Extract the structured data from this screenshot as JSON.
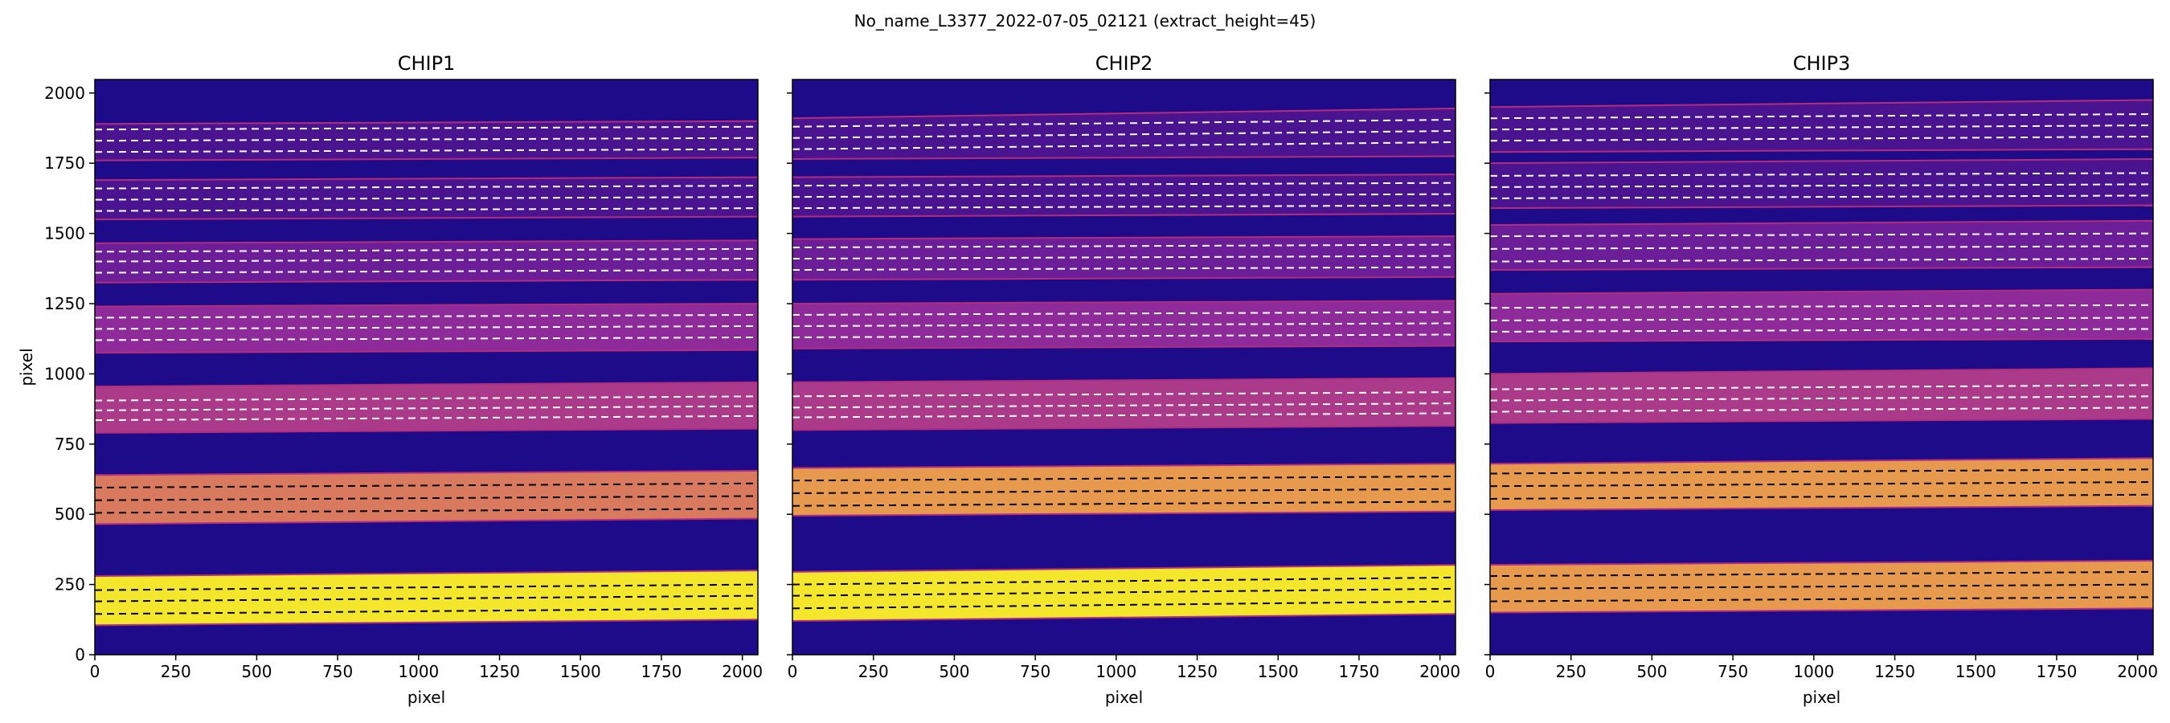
{
  "figure": {
    "suptitle": "No_name_L3377_2022-07-05_02121  (extract_height=45)"
  },
  "colors": {
    "background": "#1e0b8a",
    "order_colors": [
      "#f4e62a",
      "#e7994e",
      "#d97a5e",
      "#ab3a8a",
      "#8f2a9a",
      "#6c1d98",
      "#4a1390"
    ],
    "trace_on_bright": "#000000",
    "trace_on_dark": "#ffffff",
    "edge_line": "#b32d7a"
  },
  "chart_data": [
    {
      "type": "heatmap",
      "title": "CHIP1",
      "xlabel": "pixel",
      "ylabel": "pixel",
      "xlim": [
        0,
        2048
      ],
      "ylim": [
        0,
        2048
      ],
      "xticks": [
        0,
        250,
        500,
        750,
        1000,
        1250,
        1500,
        1750,
        2000
      ],
      "yticks": [
        0,
        250,
        500,
        750,
        1000,
        1250,
        1500,
        1750,
        2000
      ],
      "bands": [
        {
          "y_bottom_left": 105,
          "y_bottom_right": 125,
          "y_top_left": 280,
          "y_top_right": 300,
          "color_index": 0,
          "traces_left": [
            145,
            190,
            230
          ],
          "traces_right": [
            165,
            210,
            250
          ],
          "trace_style": "dark"
        },
        {
          "y_bottom_left": 465,
          "y_bottom_right": 485,
          "y_top_left": 640,
          "y_top_right": 655,
          "color_index": 2,
          "traces_left": [
            505,
            550,
            595
          ],
          "traces_right": [
            520,
            565,
            610
          ],
          "trace_style": "dark"
        },
        {
          "y_bottom_left": 790,
          "y_bottom_right": 805,
          "y_top_left": 955,
          "y_top_right": 970,
          "color_index": 3,
          "traces_left": [
            835,
            870,
            905
          ],
          "traces_right": [
            850,
            885,
            920
          ],
          "trace_style": "light"
        },
        {
          "y_bottom_left": 1075,
          "y_bottom_right": 1085,
          "y_top_left": 1240,
          "y_top_right": 1250,
          "color_index": 4,
          "traces_left": [
            1120,
            1160,
            1200
          ],
          "traces_right": [
            1130,
            1170,
            1210
          ],
          "trace_style": "light"
        },
        {
          "y_bottom_left": 1325,
          "y_bottom_right": 1335,
          "y_top_left": 1465,
          "y_top_right": 1475,
          "color_index": 5,
          "traces_left": [
            1360,
            1400,
            1435
          ],
          "traces_right": [
            1370,
            1410,
            1445
          ],
          "trace_style": "light"
        },
        {
          "y_bottom_left": 1550,
          "y_bottom_right": 1560,
          "y_top_left": 1690,
          "y_top_right": 1700,
          "color_index": 6,
          "traces_left": [
            1580,
            1620,
            1660
          ],
          "traces_right": [
            1590,
            1630,
            1670
          ],
          "trace_style": "light"
        },
        {
          "y_bottom_left": 1760,
          "y_bottom_right": 1770,
          "y_top_left": 1890,
          "y_top_right": 1900,
          "color_index": 6,
          "traces_left": [
            1790,
            1830,
            1870
          ],
          "traces_right": [
            1800,
            1840,
            1880
          ],
          "trace_style": "light"
        }
      ]
    },
    {
      "type": "heatmap",
      "title": "CHIP2",
      "xlabel": "pixel",
      "ylabel": "",
      "xlim": [
        0,
        2048
      ],
      "ylim": [
        0,
        2048
      ],
      "xticks": [
        0,
        250,
        500,
        750,
        1000,
        1250,
        1500,
        1750,
        2000
      ],
      "yticks": [
        0,
        250,
        500,
        750,
        1000,
        1250,
        1500,
        1750,
        2000
      ],
      "bands": [
        {
          "y_bottom_left": 120,
          "y_bottom_right": 145,
          "y_top_left": 295,
          "y_top_right": 320,
          "color_index": 0,
          "traces_left": [
            165,
            210,
            250
          ],
          "traces_right": [
            190,
            235,
            275
          ],
          "trace_style": "dark"
        },
        {
          "y_bottom_left": 495,
          "y_bottom_right": 510,
          "y_top_left": 665,
          "y_top_right": 680,
          "color_index": 1,
          "traces_left": [
            530,
            575,
            620
          ],
          "traces_right": [
            545,
            590,
            635
          ],
          "trace_style": "dark"
        },
        {
          "y_bottom_left": 800,
          "y_bottom_right": 815,
          "y_top_left": 970,
          "y_top_right": 985,
          "color_index": 3,
          "traces_left": [
            845,
            880,
            920
          ],
          "traces_right": [
            860,
            895,
            935
          ],
          "trace_style": "light"
        },
        {
          "y_bottom_left": 1090,
          "y_bottom_right": 1100,
          "y_top_left": 1250,
          "y_top_right": 1260,
          "color_index": 4,
          "traces_left": [
            1130,
            1170,
            1210
          ],
          "traces_right": [
            1140,
            1180,
            1220
          ],
          "trace_style": "light"
        },
        {
          "y_bottom_left": 1335,
          "y_bottom_right": 1345,
          "y_top_left": 1480,
          "y_top_right": 1490,
          "color_index": 5,
          "traces_left": [
            1370,
            1410,
            1450
          ],
          "traces_right": [
            1380,
            1420,
            1460
          ],
          "trace_style": "light"
        },
        {
          "y_bottom_left": 1560,
          "y_bottom_right": 1570,
          "y_top_left": 1700,
          "y_top_right": 1710,
          "color_index": 6,
          "traces_left": [
            1590,
            1630,
            1670
          ],
          "traces_right": [
            1600,
            1640,
            1680
          ],
          "trace_style": "light"
        },
        {
          "y_bottom_left": 1765,
          "y_bottom_right": 1775,
          "y_top_left": 1910,
          "y_top_right": 1945,
          "color_index": 6,
          "traces_left": [
            1800,
            1840,
            1880
          ],
          "traces_right": [
            1825,
            1865,
            1905
          ],
          "trace_style": "light"
        }
      ]
    },
    {
      "type": "heatmap",
      "title": "CHIP3",
      "xlabel": "pixel",
      "ylabel": "",
      "xlim": [
        0,
        2048
      ],
      "ylim": [
        0,
        2048
      ],
      "xticks": [
        0,
        250,
        500,
        750,
        1000,
        1250,
        1500,
        1750,
        2000
      ],
      "yticks": [
        0,
        250,
        500,
        750,
        1000,
        1250,
        1500,
        1750,
        2000
      ],
      "bands": [
        {
          "y_bottom_left": 150,
          "y_bottom_right": 165,
          "y_top_left": 320,
          "y_top_right": 335,
          "color_index": 1,
          "traces_left": [
            190,
            235,
            280
          ],
          "traces_right": [
            205,
            250,
            295
          ],
          "trace_style": "dark"
        },
        {
          "y_bottom_left": 515,
          "y_bottom_right": 530,
          "y_top_left": 680,
          "y_top_right": 700,
          "color_index": 1,
          "traces_left": [
            555,
            600,
            645
          ],
          "traces_right": [
            570,
            615,
            660
          ],
          "trace_style": "dark"
        },
        {
          "y_bottom_left": 825,
          "y_bottom_right": 840,
          "y_top_left": 1000,
          "y_top_right": 1020,
          "color_index": 3,
          "traces_left": [
            865,
            905,
            945
          ],
          "traces_right": [
            880,
            920,
            960
          ],
          "trace_style": "light"
        },
        {
          "y_bottom_left": 1115,
          "y_bottom_right": 1125,
          "y_top_left": 1285,
          "y_top_right": 1300,
          "color_index": 4,
          "traces_left": [
            1150,
            1190,
            1235
          ],
          "traces_right": [
            1160,
            1200,
            1245
          ],
          "trace_style": "light"
        },
        {
          "y_bottom_left": 1370,
          "y_bottom_right": 1380,
          "y_top_left": 1530,
          "y_top_right": 1545,
          "color_index": 5,
          "traces_left": [
            1400,
            1445,
            1490
          ],
          "traces_right": [
            1410,
            1455,
            1500
          ],
          "trace_style": "light"
        },
        {
          "y_bottom_left": 1590,
          "y_bottom_right": 1600,
          "y_top_left": 1750,
          "y_top_right": 1765,
          "color_index": 6,
          "traces_left": [
            1625,
            1665,
            1705
          ],
          "traces_right": [
            1635,
            1675,
            1715
          ],
          "trace_style": "light"
        },
        {
          "y_bottom_left": 1790,
          "y_bottom_right": 1800,
          "y_top_left": 1950,
          "y_top_right": 1975,
          "color_index": 6,
          "traces_left": [
            1830,
            1870,
            1910
          ],
          "traces_right": [
            1845,
            1885,
            1925
          ],
          "trace_style": "light"
        }
      ]
    }
  ]
}
